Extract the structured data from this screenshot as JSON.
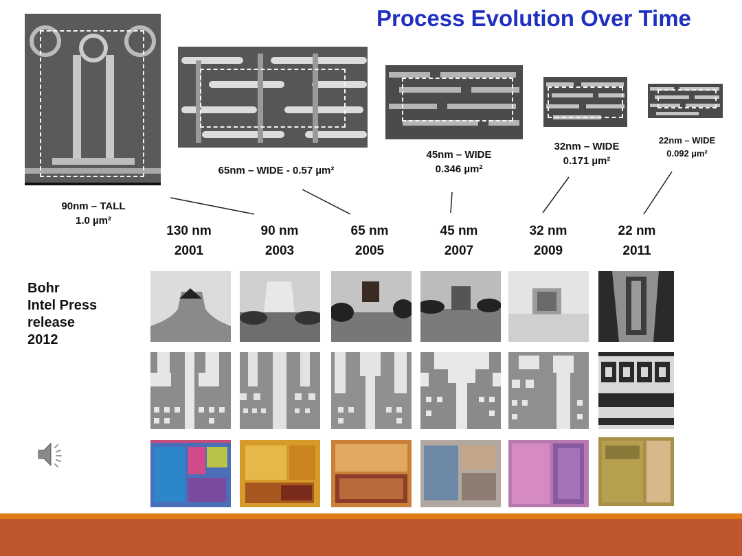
{
  "slide": {
    "title": "Process Evolution Over Time",
    "source_note": "Bohr\nIntel Press\nrelease\n2012"
  },
  "cell_captions": [
    {
      "line1": "90nm – TALL",
      "line2": "1.0 µm²"
    },
    {
      "line1": "65nm – WIDE - 0.57 µm²",
      "line2": ""
    },
    {
      "line1": "45nm – WIDE",
      "line2": "0.346 µm²"
    },
    {
      "line1": "32nm – WIDE",
      "line2": "0.171 µm²"
    },
    {
      "line1": "22nm – WIDE",
      "line2": "0.092 µm²"
    }
  ],
  "nodes": [
    {
      "name": "130 nm",
      "year": "2001"
    },
    {
      "name": "90 nm",
      "year": "2003"
    },
    {
      "name": "65 nm",
      "year": "2005"
    },
    {
      "name": "45 nm",
      "year": "2007"
    },
    {
      "name": "32 nm",
      "year": "2009"
    },
    {
      "name": "22 nm",
      "year": "2011"
    }
  ],
  "colors": {
    "title": "#1f2fbf",
    "footer": "#c0562b",
    "footer_accent": "#e07b1a"
  },
  "icons": {
    "audio": "speaker-icon"
  }
}
